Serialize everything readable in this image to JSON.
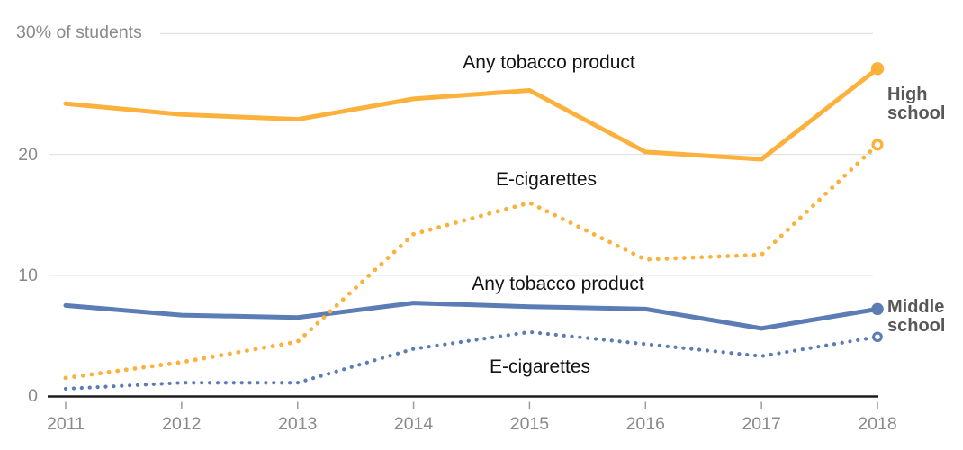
{
  "chart_data": {
    "type": "line",
    "unit": "% of students",
    "x": [
      2011,
      2012,
      2013,
      2014,
      2015,
      2016,
      2017,
      2018
    ],
    "xtick_labels": [
      "2011",
      "2012",
      "2013",
      "2014",
      "2015",
      "2016",
      "2017",
      "2018"
    ],
    "yticks": [
      0,
      10,
      20,
      30
    ],
    "ytick_labels": [
      "0",
      "10",
      "20",
      "30% of students"
    ],
    "ylim": [
      0,
      30
    ],
    "grid": true,
    "series": [
      {
        "id": "hs-any-tobacco",
        "group": "High school",
        "label": "Any tobacco product",
        "line": "solid",
        "end_marker": "filled",
        "color": "#FBB13C",
        "values": [
          24.2,
          23.3,
          22.9,
          24.6,
          25.3,
          20.2,
          19.6,
          27.1
        ]
      },
      {
        "id": "hs-ecigarettes",
        "group": "High school",
        "label": "E-cigarettes",
        "line": "dotted",
        "end_marker": "open",
        "color": "#FBB13C",
        "values": [
          1.5,
          2.8,
          4.5,
          13.4,
          16.0,
          11.3,
          11.7,
          20.8
        ]
      },
      {
        "id": "ms-any-tobacco",
        "group": "Middle school",
        "label": "Any tobacco product",
        "line": "solid",
        "end_marker": "filled",
        "color": "#5B7CB4",
        "values": [
          7.5,
          6.7,
          6.5,
          7.7,
          7.4,
          7.2,
          5.6,
          7.2
        ]
      },
      {
        "id": "ms-ecigarettes",
        "group": "Middle school",
        "label": "E-cigarettes",
        "line": "dotted",
        "end_marker": "open",
        "color": "#5B7CB4",
        "values": [
          0.6,
          1.1,
          1.1,
          3.9,
          5.3,
          4.3,
          3.3,
          4.9
        ]
      }
    ]
  },
  "annotations": {
    "hs_any": "Any tobacco product",
    "hs_ecig": "E-cigarettes",
    "ms_any": "Any tobacco product",
    "ms_ecig": "E-cigarettes"
  },
  "group_labels": {
    "high_school": "High school",
    "middle_school": "Middle school"
  },
  "colors": {
    "yellow": "#FBB13C",
    "blue": "#5B7CB4",
    "grid": "#E4E4E4",
    "axis": "#1C1C1C",
    "tick": "#9B9B9B",
    "tick_label": "#8A8A8A",
    "annotation": "#131313",
    "group_label": "#585858",
    "background": "#FFFFFF"
  }
}
